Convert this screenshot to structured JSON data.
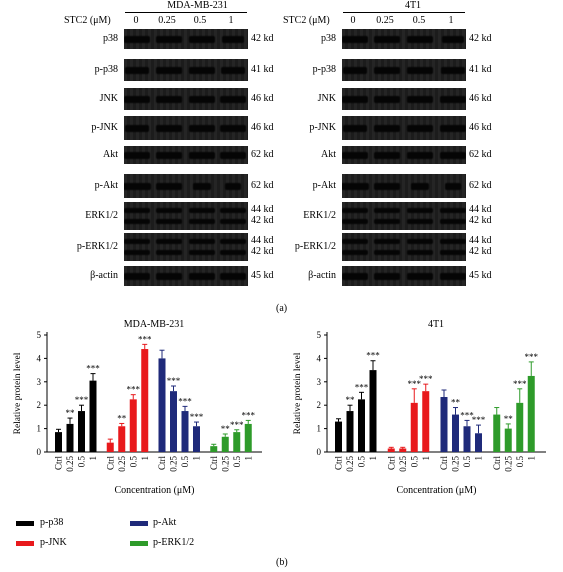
{
  "figure": {
    "panel_a_label": "(a)",
    "panel_b_label": "(b)"
  },
  "blots": [
    {
      "cell_line": "MDA-MB-231",
      "treatment_label": "STC2 (μM)",
      "doses": [
        "0",
        "0.25",
        "0.5",
        "1"
      ],
      "rows": [
        {
          "protein": "p38",
          "size": "42 kd"
        },
        {
          "protein": "p-p38",
          "size": "41 kd"
        },
        {
          "protein": "JNK",
          "size": "46 kd"
        },
        {
          "protein": "p-JNK",
          "size": "46 kd"
        },
        {
          "protein": "Akt",
          "size": "62 kd"
        },
        {
          "protein": "p-Akt",
          "size": "62 kd"
        },
        {
          "protein": "ERK1/2",
          "size": "44 kd",
          "size2": "42 kd"
        },
        {
          "protein": "p-ERK1/2",
          "size": "44 kd",
          "size2": "42 kd"
        },
        {
          "protein": "β-actin",
          "size": "45 kd"
        }
      ]
    },
    {
      "cell_line": "4T1",
      "treatment_label": "STC2 (μM)",
      "doses": [
        "0",
        "0.25",
        "0.5",
        "1"
      ],
      "rows": [
        {
          "protein": "p38",
          "size": "42 kd"
        },
        {
          "protein": "p-p38",
          "size": "41 kd"
        },
        {
          "protein": "JNK",
          "size": "46 kd"
        },
        {
          "protein": "p-JNK",
          "size": "46 kd"
        },
        {
          "protein": "Akt",
          "size": "62 kd"
        },
        {
          "protein": "p-Akt",
          "size": "62 kd"
        },
        {
          "protein": "ERK1/2",
          "size": "44 kd",
          "size2": "42 kd"
        },
        {
          "protein": "p-ERK1/2",
          "size": "44 kd",
          "size2": "42 kd"
        },
        {
          "protein": "β-actin",
          "size": "45 kd"
        }
      ]
    }
  ],
  "chart_data": [
    {
      "type": "bar",
      "title": "MDA-MB-231",
      "ylabel": "Relative protein level",
      "xlabel": "Concentration (μM)",
      "ylim": [
        0,
        5
      ],
      "yticks": [
        "0",
        "1",
        "2",
        "3",
        "4",
        "5"
      ],
      "categories": [
        "Ctrl",
        "0.25",
        "0.5",
        "1"
      ],
      "series": [
        {
          "name": "p-p38",
          "color": "#000000",
          "values": [
            0.85,
            1.2,
            1.75,
            3.05
          ],
          "errors": [
            0.12,
            0.25,
            0.25,
            0.3
          ],
          "sig": [
            "",
            "**",
            "***",
            "***"
          ]
        },
        {
          "name": "p-JNK",
          "color": "#e8191c",
          "values": [
            0.4,
            1.1,
            2.25,
            4.4
          ],
          "errors": [
            0.15,
            0.12,
            0.2,
            0.2
          ],
          "sig": [
            "",
            "**",
            "***",
            "***"
          ]
        },
        {
          "name": "p-Akt",
          "color": "#1f2a7a",
          "values": [
            4.0,
            2.6,
            1.75,
            1.1
          ],
          "errors": [
            0.35,
            0.22,
            0.2,
            0.18
          ],
          "sig": [
            "",
            "***",
            "***",
            "***"
          ]
        },
        {
          "name": "p-ERK1/2",
          "color": "#2e9b2a",
          "values": [
            0.25,
            0.65,
            0.85,
            1.2
          ],
          "errors": [
            0.08,
            0.12,
            0.1,
            0.15
          ],
          "sig": [
            "",
            "**",
            "***",
            "***"
          ]
        }
      ]
    },
    {
      "type": "bar",
      "title": "4T1",
      "ylabel": "Relative protein level",
      "xlabel": "Concentration (μM)",
      "ylim": [
        0,
        5
      ],
      "yticks": [
        "0",
        "1",
        "2",
        "3",
        "4",
        "5"
      ],
      "categories": [
        "Ctrl",
        "0.25",
        "0.5",
        "1"
      ],
      "series": [
        {
          "name": "p-p38",
          "color": "#000000",
          "values": [
            1.3,
            1.75,
            2.25,
            3.5
          ],
          "errors": [
            0.12,
            0.25,
            0.3,
            0.4
          ],
          "sig": [
            "",
            "**",
            "***",
            "***"
          ]
        },
        {
          "name": "p-JNK",
          "color": "#e8191c",
          "values": [
            0.15,
            0.15,
            2.1,
            2.6
          ],
          "errors": [
            0.05,
            0.05,
            0.6,
            0.3
          ],
          "sig": [
            "",
            "",
            "***",
            "***"
          ]
        },
        {
          "name": "p-Akt",
          "color": "#1f2a7a",
          "values": [
            2.35,
            1.6,
            1.1,
            0.8
          ],
          "errors": [
            0.3,
            0.3,
            0.25,
            0.35
          ],
          "sig": [
            "",
            "**",
            "***",
            "***"
          ]
        },
        {
          "name": "p-ERK1/2",
          "color": "#2e9b2a",
          "values": [
            1.6,
            1.0,
            2.1,
            3.25
          ],
          "errors": [
            0.3,
            0.2,
            0.6,
            0.6
          ],
          "sig": [
            "",
            "**",
            "***",
            "***"
          ]
        }
      ]
    }
  ],
  "legend": [
    {
      "name": "p-p38",
      "color": "#000000"
    },
    {
      "name": "p-Akt",
      "color": "#1f2a7a"
    },
    {
      "name": "p-JNK",
      "color": "#e8191c"
    },
    {
      "name": "p-ERK1/2",
      "color": "#2e9b2a"
    }
  ]
}
